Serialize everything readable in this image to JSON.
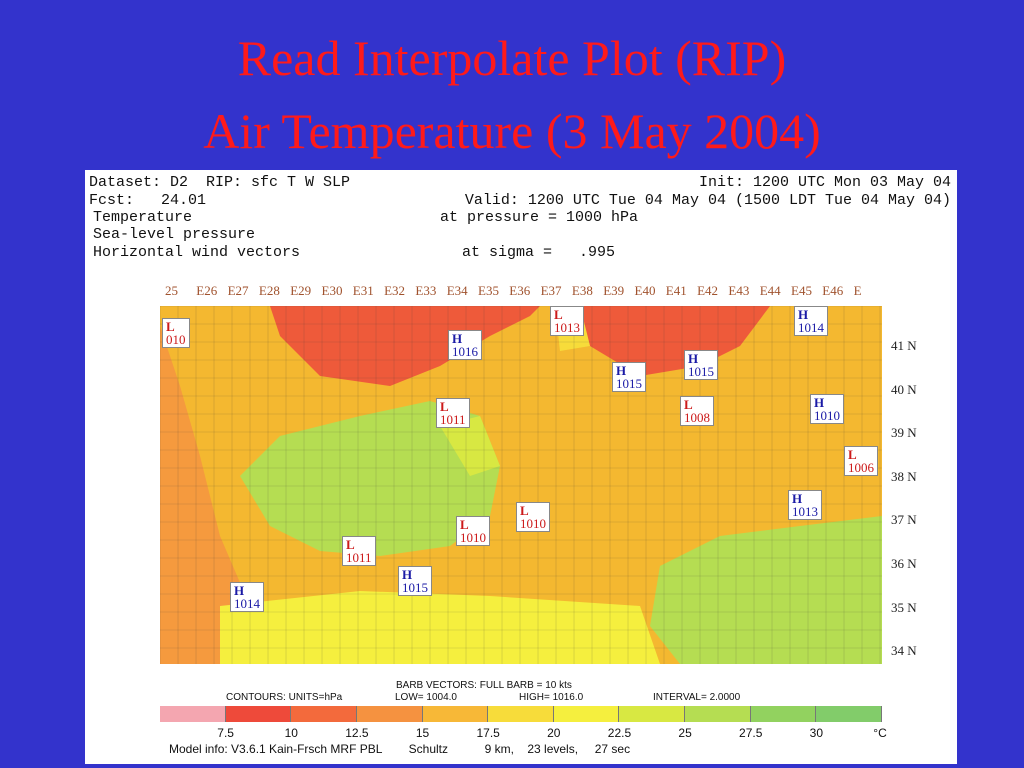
{
  "title": {
    "line1": "Read Interpolate Plot (RIP)",
    "line2": "Air Temperature (3 May 2004)"
  },
  "header": {
    "dataset": "Dataset: D2  RIP: sfc T W SLP",
    "init": "Init: 1200 UTC Mon 03 May 04",
    "fcst": "Fcst:   24.01",
    "valid": "Valid: 1200 UTC Tue 04 May 04 (1500 LDT Tue 04 May 04)",
    "field1": "Temperature",
    "field1_level": "at pressure = 1000 hPa",
    "field2": "Sea-level pressure",
    "field3": "Horizontal wind vectors",
    "field3_level": "at sigma =   .995"
  },
  "longitudes": [
    "25",
    "E26",
    "E27",
    "E28",
    "E29",
    "E30",
    "E31",
    "E32",
    "E33",
    "E34",
    "E35",
    "E36",
    "E37",
    "E38",
    "E39",
    "E40",
    "E41",
    "E42",
    "E43",
    "E44",
    "E45",
    "E46",
    "E"
  ],
  "latitudes": [
    "41 N",
    "40 N",
    "39 N",
    "38 N",
    "37 N",
    "36 N",
    "35 N",
    "34 N"
  ],
  "stations": [
    {
      "type": "low",
      "letter": "L",
      "value": "010"
    },
    {
      "type": "high",
      "letter": "H",
      "value": "1016"
    },
    {
      "type": "low",
      "letter": "L",
      "value": "1013"
    },
    {
      "type": "high",
      "letter": "H",
      "value": "1014"
    },
    {
      "type": "high",
      "letter": "H",
      "value": "1015"
    },
    {
      "type": "high",
      "letter": "H",
      "value": "1015"
    },
    {
      "type": "low",
      "letter": "L",
      "value": "1008"
    },
    {
      "type": "high",
      "letter": "H",
      "value": "1010"
    },
    {
      "type": "low",
      "letter": "L",
      "value": "1011"
    },
    {
      "type": "low",
      "letter": "L",
      "value": "1006"
    },
    {
      "type": "high",
      "letter": "H",
      "value": "1013"
    },
    {
      "type": "low",
      "letter": "L",
      "value": "1010"
    },
    {
      "type": "low",
      "letter": "L",
      "value": "1010"
    },
    {
      "type": "low",
      "letter": "L",
      "value": "1011"
    },
    {
      "type": "high",
      "letter": "H",
      "value": "1015"
    },
    {
      "type": "high",
      "letter": "H",
      "value": "1014"
    }
  ],
  "legend": {
    "barb_vectors": "BARB VECTORS:   FULL BARB = 10 kts",
    "contours": "CONTOURS:   UNITS=hPa",
    "low": "LOW=   1004.0",
    "high": "HIGH=   1016.0",
    "interval": "INTERVAL=     2.0000"
  },
  "colorbar": {
    "labels": [
      "7.5",
      "10",
      "12.5",
      "15",
      "17.5",
      "20",
      "22.5",
      "25",
      "27.5",
      "30",
      "°C"
    ],
    "colors": [
      "#f4a6b0",
      "#ee4a3a",
      "#f36a3c",
      "#f59240",
      "#f7b837",
      "#f7dc3a",
      "#f5ef3e",
      "#d8e842",
      "#b5dd52",
      "#92d25f",
      "#82cc6a"
    ]
  },
  "model_info": "Model info: V3.6.1 Kain-Frsch MRF PBL        Schultz           9 km,    23 levels,     27 sec"
}
